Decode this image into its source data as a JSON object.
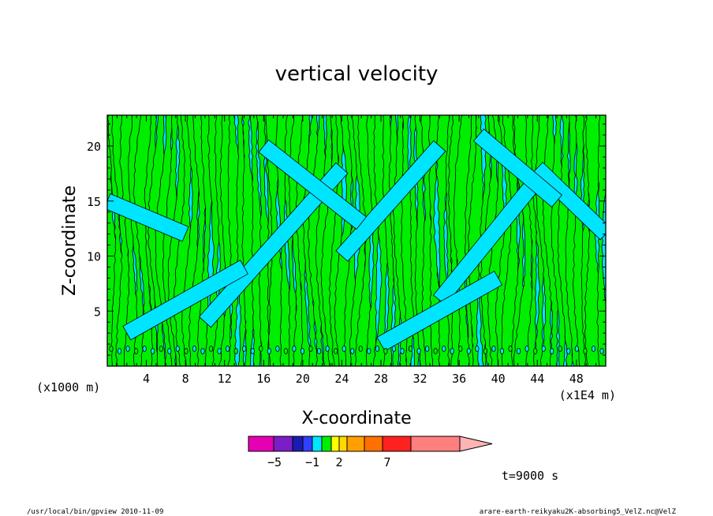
{
  "chart_data": {
    "type": "heatmap",
    "title": "vertical velocity",
    "xlabel": "X-coordinate",
    "ylabel": "Z-coordinate",
    "x_unit_left": "(x1000 m)",
    "x_unit_right": "(x1E4 m)",
    "xlim": [
      0,
      51
    ],
    "ylim": [
      0,
      22.8
    ],
    "x_ticks": [
      4,
      8,
      12,
      16,
      20,
      24,
      28,
      32,
      36,
      40,
      44,
      48
    ],
    "y_ticks": [
      5,
      10,
      15,
      20
    ],
    "field_colors": {
      "negative": "#00e5ff",
      "positive": "#00ee00",
      "contour": "#000000"
    },
    "colorbar": {
      "colors": [
        "#e600b4",
        "#7a1ec8",
        "#1b1bb4",
        "#2f40ff",
        "#00e6ff",
        "#00ee00",
        "#ffff00",
        "#ffd800",
        "#ffa000",
        "#ff7000",
        "#ff2020",
        "#ff7f7f",
        "#ffb4b4"
      ],
      "tick_labels": [
        {
          "value": -5,
          "text": "−5"
        },
        {
          "value": -1,
          "text": "−1"
        },
        {
          "value": 2,
          "text": "2"
        },
        {
          "value": 7,
          "text": "7"
        }
      ]
    },
    "time_label": "t=9000 s"
  },
  "footer": {
    "left": "/usr/local/bin/gpview  2010-11-09",
    "right": "arare-earth-reikyaku2K-absorbing5_VelZ.nc@VelZ"
  }
}
